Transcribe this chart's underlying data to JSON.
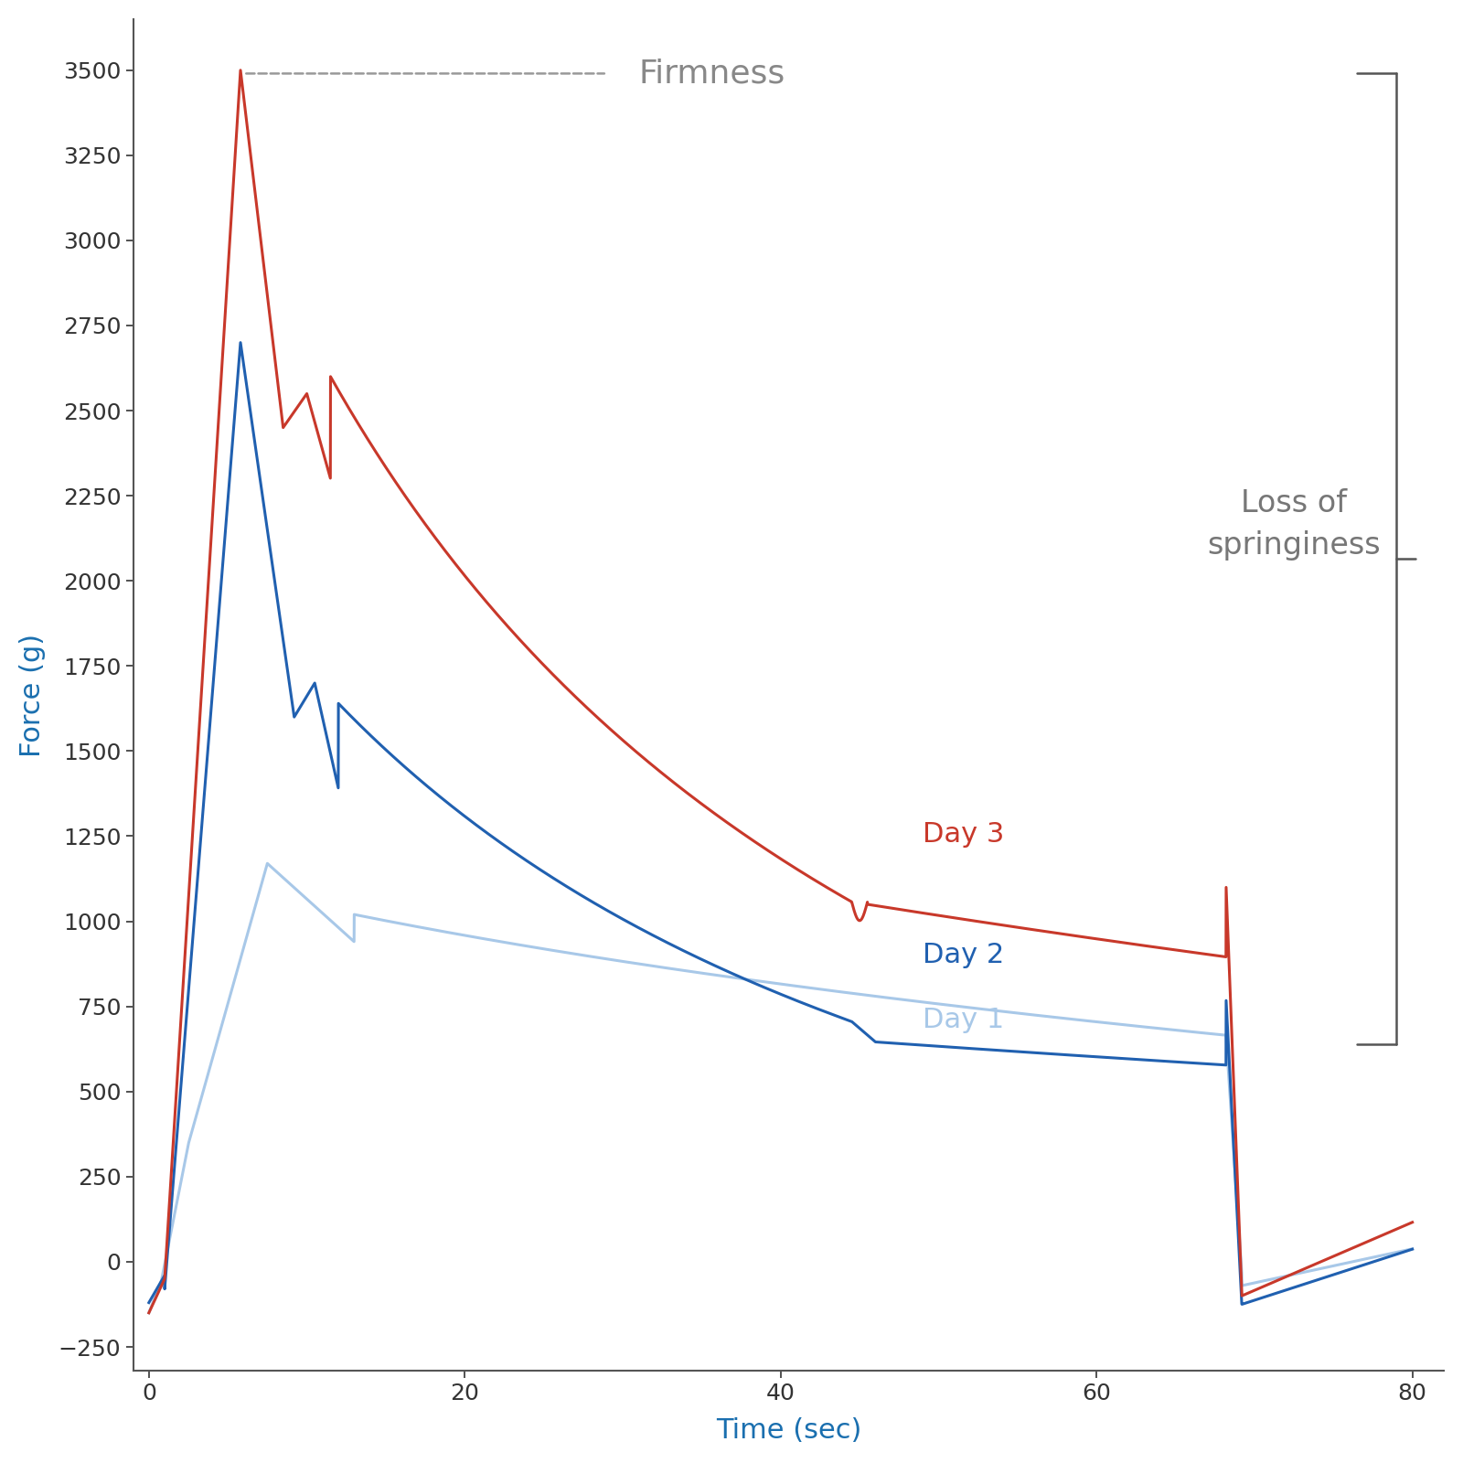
{
  "title": "",
  "xlabel": "Time (sec)",
  "ylabel": "Force (g)",
  "xlabel_color": "#1a6faf",
  "ylabel_color": "#1a6faf",
  "xlim": [
    -1,
    82
  ],
  "ylim": [
    -320,
    3650
  ],
  "yticks": [
    -250,
    0,
    250,
    500,
    750,
    1000,
    1250,
    1500,
    1750,
    2000,
    2250,
    2500,
    2750,
    3000,
    3250,
    3500
  ],
  "xticks": [
    0,
    20,
    40,
    60,
    80
  ],
  "background_color": "#ffffff",
  "axis_color": "#555555",
  "tick_color": "#333333",
  "firmness_label": "Firmness",
  "firmness_label_color": "#888888",
  "loss_springiness_label": "Loss of\nspringiness",
  "loss_springiness_color": "#777777",
  "day1_color": "#a8c8e8",
  "day2_color": "#2060b0",
  "day3_color": "#c8382a",
  "day1_label": "Day 1",
  "day2_label": "Day 2",
  "day3_label": "Day 3",
  "brace_color": "#555555"
}
